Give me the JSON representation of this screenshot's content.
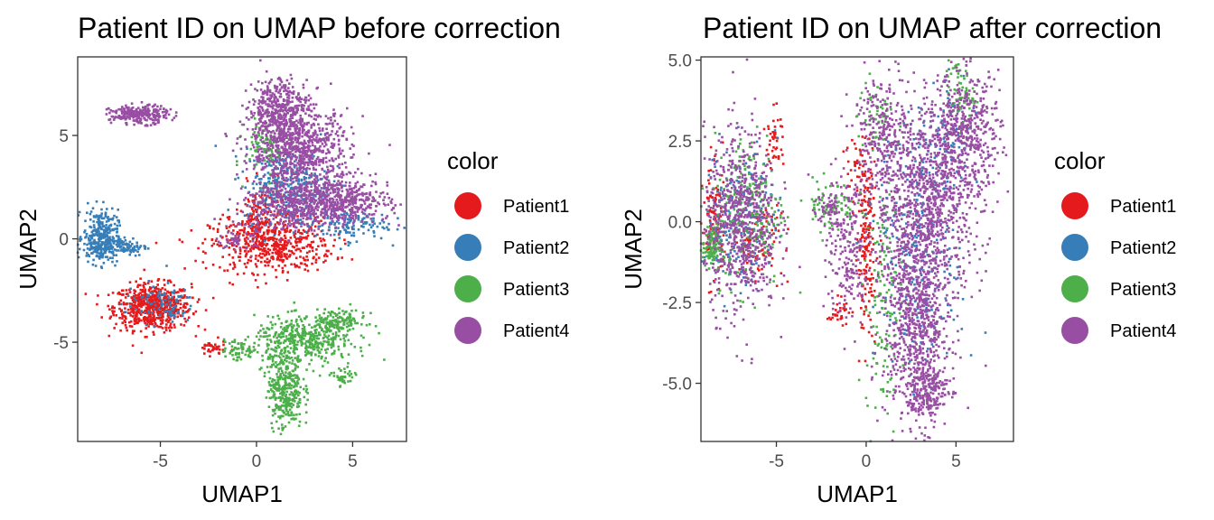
{
  "chart_data": [
    {
      "type": "scatter",
      "title": "Patient ID on UMAP before correction",
      "xlabel": "UMAP1",
      "ylabel": "UMAP2",
      "xlim": [
        -9.3,
        7.8
      ],
      "ylim": [
        -9.8,
        8.8
      ],
      "xticks": [
        -5,
        0,
        5
      ],
      "xtick_labels": [
        "-5",
        "0",
        "5"
      ],
      "yticks": [
        5,
        0,
        -5
      ],
      "ytick_labels": [
        "5",
        "0",
        "-5"
      ],
      "grid": false,
      "legend": {
        "title": "color",
        "placement": "right"
      },
      "series": [
        {
          "name": "Patient1",
          "color": "#e41a1c",
          "clusters": [
            {
              "cx": -5.4,
              "cy": -3.3,
              "sx": 1.0,
              "sy": 0.55,
              "n": 650
            },
            {
              "cx": 0.8,
              "cy": -0.3,
              "sx": 1.6,
              "sy": 0.65,
              "n": 500
            },
            {
              "cx": 0.3,
              "cy": 1.0,
              "sx": 0.7,
              "sy": 0.8,
              "n": 140
            },
            {
              "cx": -2.3,
              "cy": -5.3,
              "sx": 0.35,
              "sy": 0.18,
              "n": 40
            }
          ]
        },
        {
          "name": "Patient2",
          "color": "#377eb8",
          "clusters": [
            {
              "cx": -8.1,
              "cy": 0.1,
              "sx": 0.45,
              "sy": 0.65,
              "n": 300
            },
            {
              "cx": -7.2,
              "cy": -0.4,
              "sx": 0.8,
              "sy": 0.22,
              "n": 120
            },
            {
              "cx": 1.6,
              "cy": 2.6,
              "sx": 1.1,
              "sy": 0.9,
              "n": 320
            },
            {
              "cx": 4.6,
              "cy": 0.7,
              "sx": 1.1,
              "sy": 0.4,
              "n": 140
            },
            {
              "cx": -5.0,
              "cy": -3.1,
              "sx": 0.9,
              "sy": 0.5,
              "n": 90
            }
          ]
        },
        {
          "name": "Patient3",
          "color": "#4daf4a",
          "clusters": [
            {
              "cx": 1.5,
              "cy": -7.2,
              "sx": 0.45,
              "sy": 1.0,
              "n": 350
            },
            {
              "cx": 2.5,
              "cy": -4.9,
              "sx": 1.3,
              "sy": 0.55,
              "n": 430
            },
            {
              "cx": 4.3,
              "cy": -4.0,
              "sx": 0.7,
              "sy": 0.3,
              "n": 120
            },
            {
              "cx": 4.5,
              "cy": -6.7,
              "sx": 0.3,
              "sy": 0.25,
              "n": 40
            },
            {
              "cx": -0.9,
              "cy": -5.4,
              "sx": 0.45,
              "sy": 0.28,
              "n": 60
            },
            {
              "cx": 0.5,
              "cy": 4.4,
              "sx": 0.55,
              "sy": 0.7,
              "n": 90
            }
          ]
        },
        {
          "name": "Patient4",
          "color": "#984ea3",
          "clusters": [
            {
              "cx": -6.1,
              "cy": 6.0,
              "sx": 0.75,
              "sy": 0.22,
              "n": 260
            },
            {
              "cx": 1.2,
              "cy": 6.2,
              "sx": 0.8,
              "sy": 0.8,
              "n": 450
            },
            {
              "cx": 2.3,
              "cy": 4.2,
              "sx": 1.3,
              "sy": 1.0,
              "n": 750
            },
            {
              "cx": 4.3,
              "cy": 1.8,
              "sx": 1.3,
              "sy": 0.55,
              "n": 500
            },
            {
              "cx": 1.6,
              "cy": 1.6,
              "sx": 1.1,
              "sy": 0.6,
              "n": 300
            },
            {
              "cx": -1.0,
              "cy": 0.0,
              "sx": 0.5,
              "sy": 0.3,
              "n": 60
            }
          ]
        }
      ]
    },
    {
      "type": "scatter",
      "title": "Patient ID on UMAP after correction",
      "xlabel": "UMAP1",
      "ylabel": "UMAP2",
      "xlim": [
        -9.2,
        8.2
      ],
      "ylim": [
        -6.8,
        5.1
      ],
      "xticks": [
        -5,
        0,
        5
      ],
      "xtick_labels": [
        "-5",
        "0",
        "5"
      ],
      "yticks": [
        5.0,
        2.5,
        0.0,
        -2.5,
        -5.0
      ],
      "ytick_labels": [
        "5.0",
        "2.5",
        "0.0",
        "-2.5",
        "-5.0"
      ],
      "grid": false,
      "legend": {
        "title": "color",
        "placement": "right"
      },
      "series": [
        {
          "name": "Patient1",
          "color": "#e41a1c",
          "clusters": [
            {
              "cx": -5.1,
              "cy": 2.6,
              "sx": 0.25,
              "sy": 0.45,
              "n": 40
            },
            {
              "cx": -8.5,
              "cy": 0.0,
              "sx": 0.35,
              "sy": 0.9,
              "n": 110
            },
            {
              "cx": -6.0,
              "cy": -0.5,
              "sx": 0.7,
              "sy": 0.6,
              "n": 90
            },
            {
              "cx": 0.0,
              "cy": -1.0,
              "sx": 0.3,
              "sy": 1.2,
              "n": 150
            },
            {
              "cx": -0.3,
              "cy": 1.5,
              "sx": 0.4,
              "sy": 0.6,
              "n": 60
            },
            {
              "cx": -1.5,
              "cy": -2.8,
              "sx": 0.3,
              "sy": 0.2,
              "n": 30
            }
          ]
        },
        {
          "name": "Patient2",
          "color": "#377eb8",
          "clusters": [
            {
              "cx": -7.0,
              "cy": 0.2,
              "sx": 1.0,
              "sy": 1.1,
              "n": 200
            },
            {
              "cx": 3.0,
              "cy": -1.0,
              "sx": 1.2,
              "sy": 1.8,
              "n": 250
            },
            {
              "cx": 4.0,
              "cy": 2.3,
              "sx": 1.0,
              "sy": 1.0,
              "n": 110
            }
          ]
        },
        {
          "name": "Patient3",
          "color": "#4daf4a",
          "clusters": [
            {
              "cx": -8.6,
              "cy": -0.8,
              "sx": 0.25,
              "sy": 0.3,
              "n": 110
            },
            {
              "cx": -6.5,
              "cy": 0.4,
              "sx": 1.0,
              "sy": 1.2,
              "n": 220
            },
            {
              "cx": -2.0,
              "cy": 0.5,
              "sx": 0.7,
              "sy": 0.4,
              "n": 80
            },
            {
              "cx": 1.0,
              "cy": -2.5,
              "sx": 0.5,
              "sy": 1.8,
              "n": 130
            },
            {
              "cx": 5.2,
              "cy": 4.0,
              "sx": 0.4,
              "sy": 0.5,
              "n": 70
            },
            {
              "cx": 0.5,
              "cy": 3.2,
              "sx": 0.5,
              "sy": 0.6,
              "n": 50
            }
          ]
        },
        {
          "name": "Patient4",
          "color": "#984ea3",
          "clusters": [
            {
              "cx": -7.0,
              "cy": 0.0,
              "sx": 1.0,
              "sy": 1.4,
              "n": 700
            },
            {
              "cx": 2.8,
              "cy": -3.0,
              "sx": 0.9,
              "sy": 1.6,
              "n": 800
            },
            {
              "cx": 3.5,
              "cy": 0.7,
              "sx": 1.5,
              "sy": 1.4,
              "n": 900
            },
            {
              "cx": 5.5,
              "cy": 2.8,
              "sx": 1.0,
              "sy": 0.9,
              "n": 450
            },
            {
              "cx": 3.5,
              "cy": -5.2,
              "sx": 0.6,
              "sy": 0.4,
              "n": 200
            },
            {
              "cx": 0.8,
              "cy": 2.8,
              "sx": 0.8,
              "sy": 0.9,
              "n": 250
            },
            {
              "cx": -1.0,
              "cy": -1.2,
              "sx": 0.6,
              "sy": 1.0,
              "n": 180
            },
            {
              "cx": -1.8,
              "cy": 0.5,
              "sx": 0.6,
              "sy": 0.3,
              "n": 80
            }
          ]
        }
      ]
    }
  ]
}
